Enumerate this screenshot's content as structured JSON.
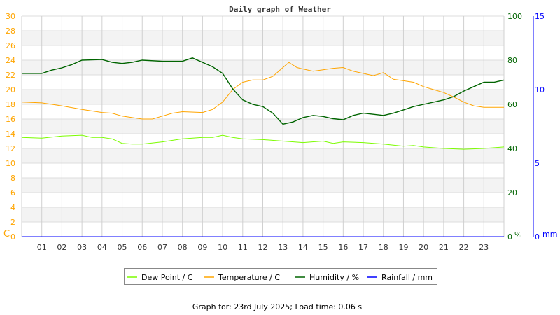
{
  "chart_data": {
    "type": "line",
    "title": "Daily graph of Weather",
    "footer": "Graph for: 23rd July 2025; Load time: 0.06 s",
    "x_ticks": [
      "01",
      "02",
      "03",
      "04",
      "05",
      "06",
      "07",
      "08",
      "09",
      "10",
      "11",
      "12",
      "13",
      "14",
      "15",
      "16",
      "17",
      "18",
      "19",
      "20",
      "21",
      "22",
      "23"
    ],
    "xlim": [
      0,
      24
    ],
    "grid": true,
    "legend_position": "bottom",
    "axes": {
      "left": {
        "unit": "C",
        "ylim": [
          0,
          30
        ],
        "ticks": [
          "0",
          "2",
          "4",
          "6",
          "8",
          "10",
          "12",
          "14",
          "16",
          "18",
          "20",
          "22",
          "24",
          "26",
          "28",
          "30"
        ],
        "color": "#ffa500"
      },
      "right": {
        "unit": "%",
        "ylim": [
          0,
          100
        ],
        "ticks": [
          "0",
          "20",
          "40",
          "60",
          "80",
          "100"
        ],
        "color": "#006400"
      },
      "far_right": {
        "unit": "mm",
        "ylim": [
          0,
          15
        ],
        "ticks": [
          "0",
          "5",
          "10",
          "15"
        ],
        "color": "#0000ff"
      }
    },
    "series": [
      {
        "name": "Dew Point / C",
        "axis": "left",
        "color": "#7cfc00",
        "points": [
          [
            0,
            13.5
          ],
          [
            1,
            13.4
          ],
          [
            2,
            13.7
          ],
          [
            3,
            13.8
          ],
          [
            3.5,
            13.5
          ],
          [
            4,
            13.5
          ],
          [
            4.5,
            13.3
          ],
          [
            5,
            12.7
          ],
          [
            5.5,
            12.6
          ],
          [
            6,
            12.6
          ],
          [
            7,
            12.9
          ],
          [
            8,
            13.3
          ],
          [
            9,
            13.5
          ],
          [
            9.5,
            13.5
          ],
          [
            10,
            13.8
          ],
          [
            10.5,
            13.5
          ],
          [
            11,
            13.3
          ],
          [
            12,
            13.2
          ],
          [
            13,
            13.0
          ],
          [
            14,
            12.8
          ],
          [
            15,
            13.0
          ],
          [
            15.5,
            12.7
          ],
          [
            16,
            12.9
          ],
          [
            17,
            12.8
          ],
          [
            18,
            12.6
          ],
          [
            19,
            12.3
          ],
          [
            19.5,
            12.4
          ],
          [
            20,
            12.2
          ],
          [
            21,
            12.0
          ],
          [
            22,
            11.9
          ],
          [
            23,
            12.0
          ],
          [
            24,
            12.2
          ]
        ]
      },
      {
        "name": "Temperature / C",
        "axis": "left",
        "color": "#ffa500",
        "points": [
          [
            0,
            18.3
          ],
          [
            1,
            18.2
          ],
          [
            2,
            17.8
          ],
          [
            3,
            17.3
          ],
          [
            4,
            16.9
          ],
          [
            4.5,
            16.8
          ],
          [
            5,
            16.4
          ],
          [
            6,
            16.0
          ],
          [
            6.5,
            16.0
          ],
          [
            7,
            16.4
          ],
          [
            7.5,
            16.8
          ],
          [
            8,
            17.0
          ],
          [
            9,
            16.9
          ],
          [
            9.5,
            17.3
          ],
          [
            10,
            18.3
          ],
          [
            10.5,
            20.0
          ],
          [
            11,
            21.0
          ],
          [
            11.5,
            21.3
          ],
          [
            12,
            21.3
          ],
          [
            12.5,
            21.8
          ],
          [
            13,
            23.0
          ],
          [
            13.3,
            23.7
          ],
          [
            13.7,
            23.0
          ],
          [
            14,
            22.8
          ],
          [
            14.5,
            22.5
          ],
          [
            15,
            22.7
          ],
          [
            15.5,
            22.9
          ],
          [
            16,
            23.0
          ],
          [
            16.5,
            22.5
          ],
          [
            17,
            22.2
          ],
          [
            17.5,
            21.9
          ],
          [
            18,
            22.3
          ],
          [
            18.5,
            21.4
          ],
          [
            19,
            21.2
          ],
          [
            19.5,
            21.0
          ],
          [
            20,
            20.4
          ],
          [
            20.5,
            20.0
          ],
          [
            21,
            19.6
          ],
          [
            21.5,
            19.0
          ],
          [
            22,
            18.3
          ],
          [
            22.5,
            17.8
          ],
          [
            23,
            17.6
          ],
          [
            24,
            17.6
          ]
        ]
      },
      {
        "name": "Humidity / %",
        "axis": "right",
        "color": "#006400",
        "points": [
          [
            0,
            74
          ],
          [
            1,
            74
          ],
          [
            1.5,
            75.5
          ],
          [
            2,
            76.5
          ],
          [
            2.5,
            78
          ],
          [
            3,
            80
          ],
          [
            4,
            80.3
          ],
          [
            4.5,
            79
          ],
          [
            5,
            78.5
          ],
          [
            5.5,
            79
          ],
          [
            6,
            80
          ],
          [
            7,
            79.5
          ],
          [
            8,
            79.5
          ],
          [
            8.5,
            81
          ],
          [
            9,
            79
          ],
          [
            9.5,
            77
          ],
          [
            10,
            74
          ],
          [
            10.5,
            67
          ],
          [
            11,
            62
          ],
          [
            11.5,
            60
          ],
          [
            12,
            59
          ],
          [
            12.5,
            56
          ],
          [
            13,
            51
          ],
          [
            13.5,
            52
          ],
          [
            14,
            54
          ],
          [
            14.5,
            55
          ],
          [
            15,
            54.5
          ],
          [
            15.5,
            53.5
          ],
          [
            16,
            53
          ],
          [
            16.5,
            55
          ],
          [
            17,
            56
          ],
          [
            18,
            55
          ],
          [
            18.5,
            56
          ],
          [
            19,
            57.5
          ],
          [
            19.5,
            59
          ],
          [
            20,
            60
          ],
          [
            21,
            62
          ],
          [
            21.5,
            63.5
          ],
          [
            22,
            66
          ],
          [
            22.5,
            68
          ],
          [
            23,
            70
          ],
          [
            23.5,
            70
          ],
          [
            24,
            71
          ]
        ]
      },
      {
        "name": "Rainfall / mm",
        "axis": "far_right",
        "color": "#0000ff",
        "points": [
          [
            0,
            0
          ],
          [
            24,
            0
          ]
        ]
      }
    ]
  }
}
